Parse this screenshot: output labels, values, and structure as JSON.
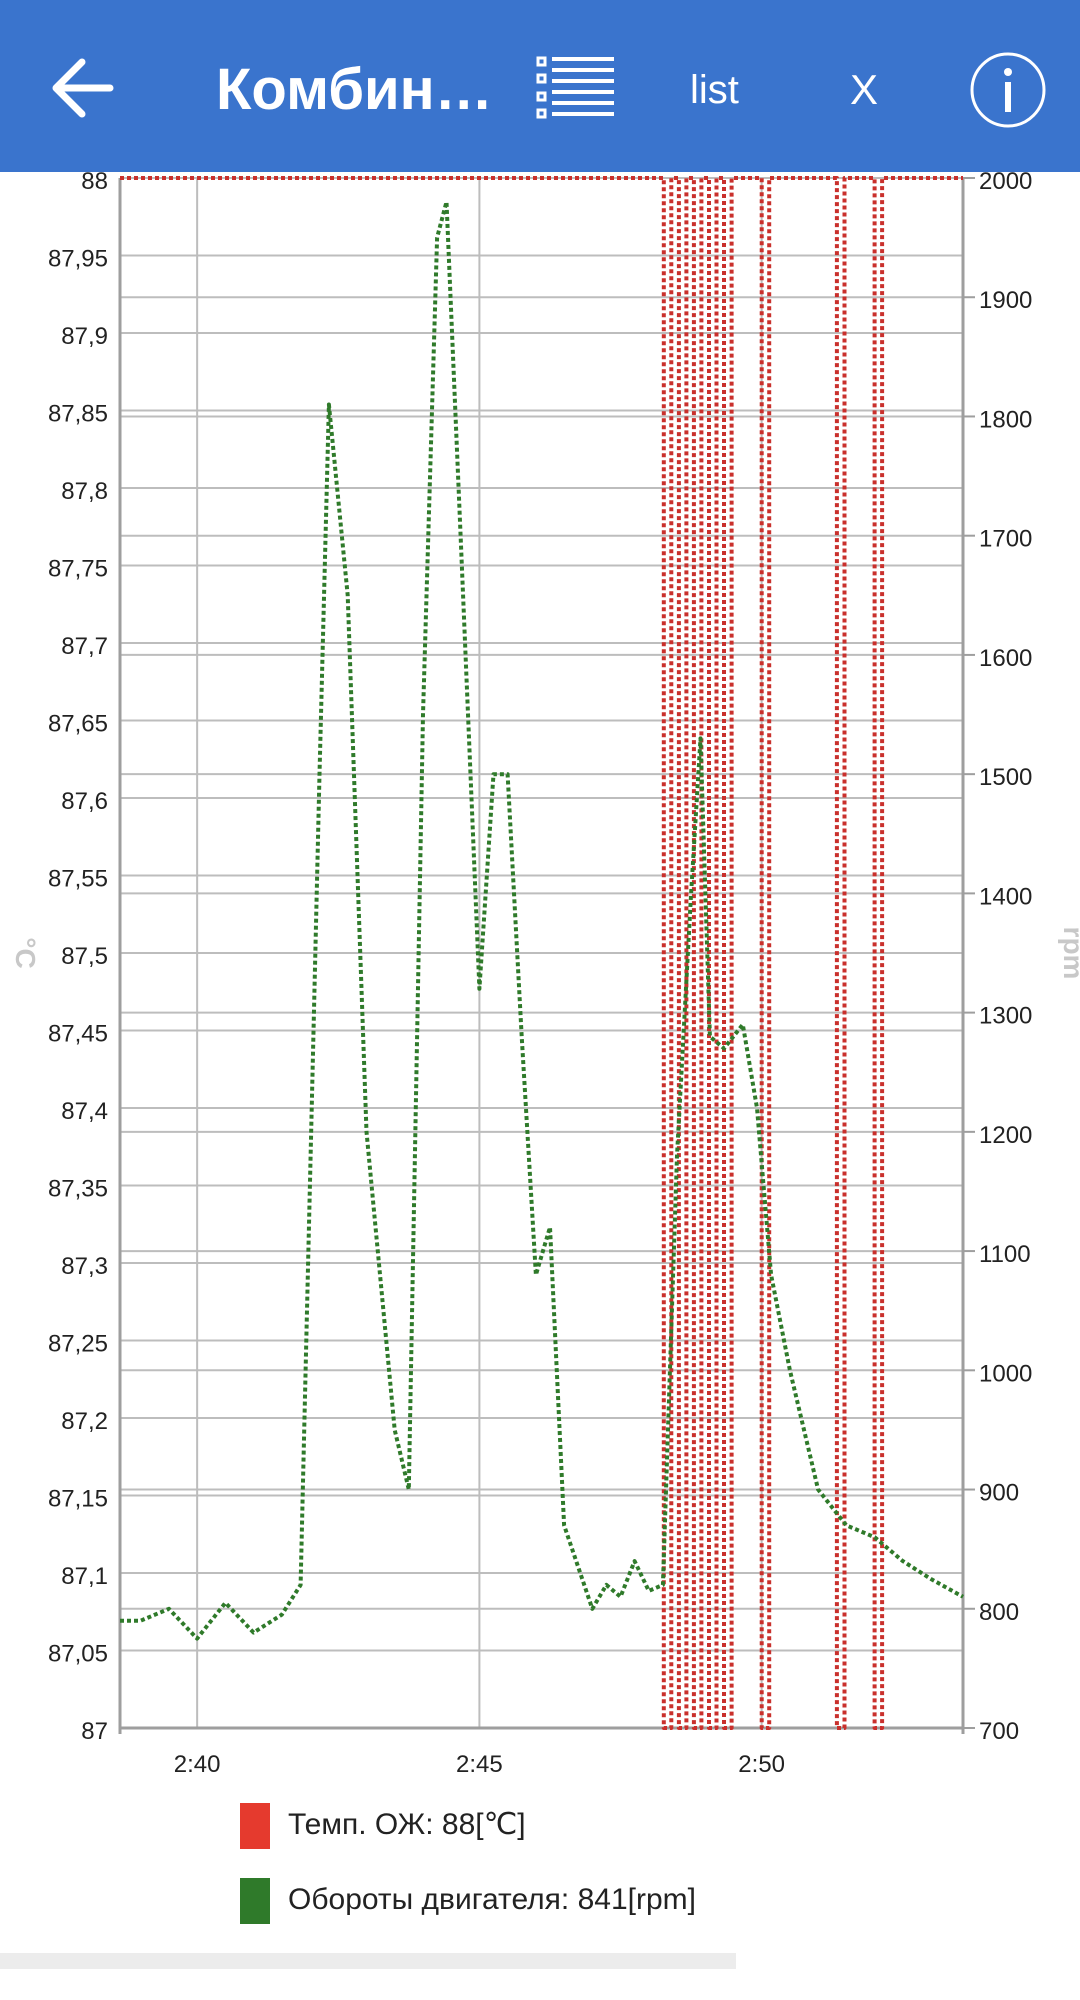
{
  "appbar": {
    "title": "Комбин…",
    "list_label": "list",
    "x_label": "X",
    "color": "#3a74cd"
  },
  "legend": [
    {
      "label": "Темп. ОЖ: 88[℃]",
      "color": "#e53a2e"
    },
    {
      "label": "Обороты двигателя: 841[rpm]",
      "color": "#2f7a2a"
    }
  ],
  "chart_data": {
    "type": "line",
    "x_ticks": [
      "2:40",
      "2:45",
      "2:50"
    ],
    "x_range": [
      "2:38:38",
      "2:53:34"
    ],
    "yleft": {
      "label": "°C",
      "range": [
        87,
        88
      ],
      "ticks": [
        "87",
        "87,05",
        "87,1",
        "87,15",
        "87,2",
        "87,25",
        "87,3",
        "87,35",
        "87,4",
        "87,45",
        "87,5",
        "87,55",
        "87,6",
        "87,65",
        "87,7",
        "87,75",
        "87,8",
        "87,85",
        "87,9",
        "87,95",
        "88"
      ]
    },
    "yright": {
      "label": "rpm",
      "range": [
        700,
        2000
      ],
      "ticks": [
        "700",
        "800",
        "900",
        "1000",
        "1100",
        "1200",
        "1300",
        "1400",
        "1500",
        "1600",
        "1700",
        "1800",
        "1900",
        "2000"
      ]
    },
    "grid": true,
    "series": [
      {
        "name": "Темп. ОЖ",
        "axis": "left",
        "unit": "℃",
        "color": "#c9302c",
        "x": [
          "2:38:38",
          "2:48:12",
          "2:48:16",
          "2:48:20",
          "2:48:24",
          "2:48:28",
          "2:48:32",
          "2:48:36",
          "2:48:40",
          "2:48:44",
          "2:48:48",
          "2:48:52",
          "2:48:56",
          "2:49:00",
          "2:49:04",
          "2:49:08",
          "2:49:12",
          "2:49:16",
          "2:49:20",
          "2:49:24",
          "2:49:28",
          "2:49:32",
          "2:49:36",
          "2:49:40",
          "2:49:44",
          "2:49:48",
          "2:49:52",
          "2:49:56",
          "2:50:00",
          "2:50:04",
          "2:50:08",
          "2:51:16",
          "2:51:20",
          "2:51:24",
          "2:51:28",
          "2:51:56",
          "2:52:00",
          "2:52:04",
          "2:52:08",
          "2:53:34"
        ],
        "values": [
          88,
          88,
          87,
          87,
          88,
          88,
          87,
          87,
          88,
          88,
          87,
          87,
          88,
          88,
          87,
          87,
          88,
          88,
          87,
          87,
          88,
          88,
          88,
          88,
          88,
          88,
          88,
          88,
          87,
          87,
          88,
          88,
          87,
          87,
          88,
          88,
          87,
          87,
          88,
          88
        ]
      },
      {
        "name": "Обороты двигателя",
        "axis": "right",
        "unit": "rpm",
        "color": "#2f7a2a",
        "x": [
          "2:38:38",
          "2:39:00",
          "2:39:30",
          "2:40:00",
          "2:40:30",
          "2:41:00",
          "2:41:30",
          "2:41:50",
          "2:42:10",
          "2:42:20",
          "2:42:40",
          "2:43:00",
          "2:43:30",
          "2:43:45",
          "2:44:00",
          "2:44:15",
          "2:44:25",
          "2:44:40",
          "2:45:00",
          "2:45:15",
          "2:45:30",
          "2:45:45",
          "2:46:00",
          "2:46:15",
          "2:46:30",
          "2:47:00",
          "2:47:15",
          "2:47:30",
          "2:47:45",
          "2:48:00",
          "2:48:15",
          "2:48:30",
          "2:48:45",
          "2:48:55",
          "2:49:05",
          "2:49:20",
          "2:49:40",
          "2:49:55",
          "2:50:10",
          "2:50:30",
          "2:51:00",
          "2:51:30",
          "2:52:00",
          "2:52:30",
          "2:53:00",
          "2:53:34"
        ],
        "values": [
          790,
          790,
          800,
          775,
          805,
          780,
          795,
          820,
          1500,
          1810,
          1650,
          1200,
          950,
          900,
          1550,
          1950,
          1980,
          1700,
          1320,
          1500,
          1500,
          1280,
          1080,
          1120,
          870,
          800,
          820,
          810,
          840,
          815,
          820,
          1180,
          1400,
          1530,
          1280,
          1270,
          1290,
          1220,
          1080,
          1000,
          900,
          870,
          860,
          840,
          825,
          810
        ]
      }
    ]
  }
}
